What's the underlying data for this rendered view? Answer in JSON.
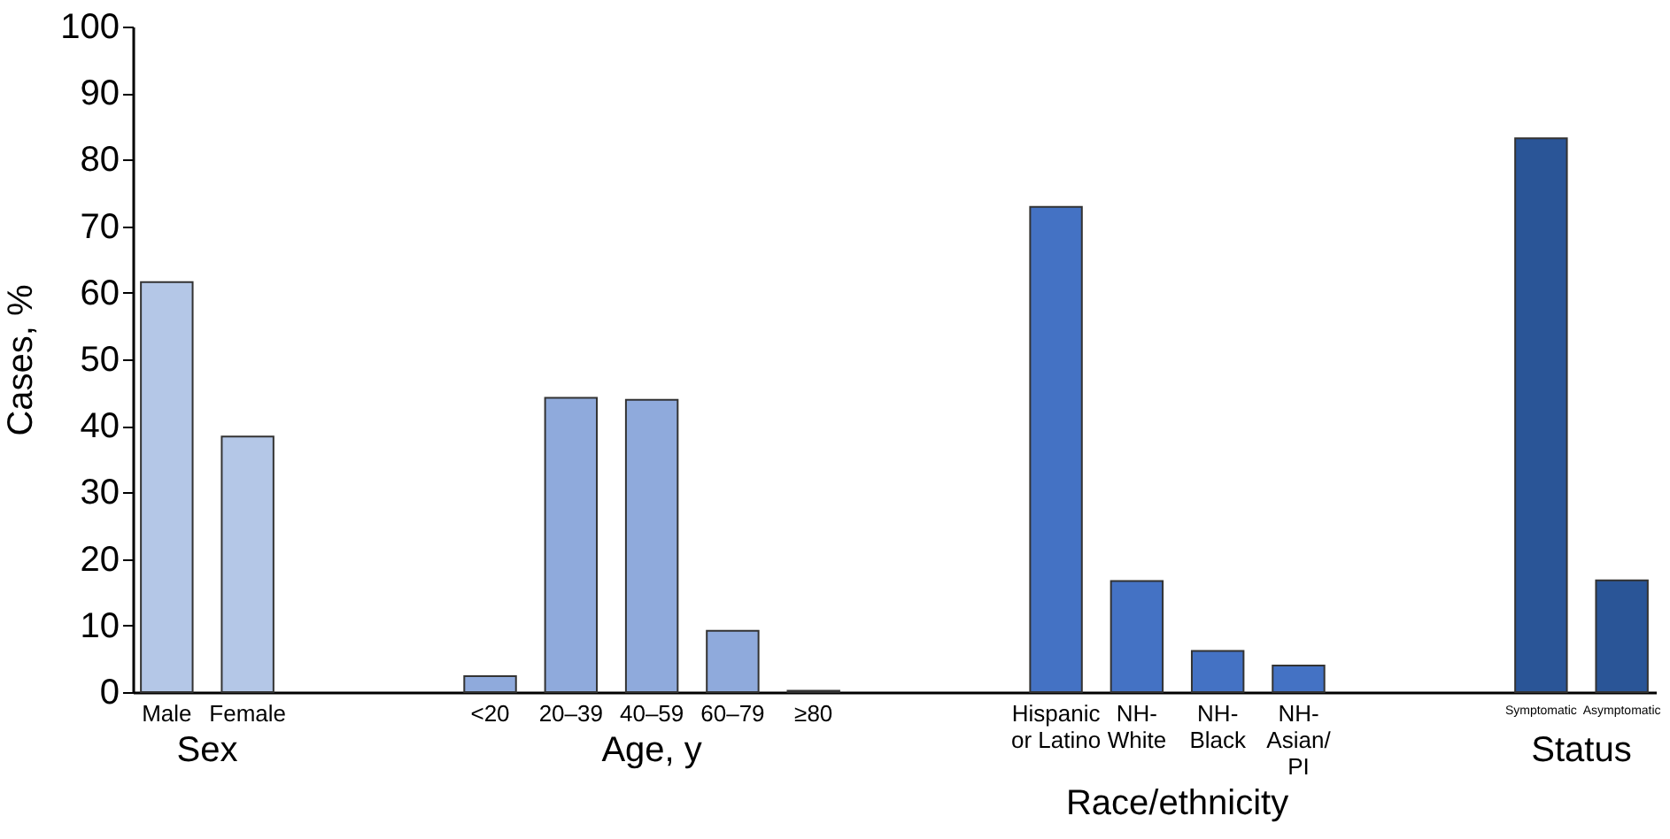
{
  "chart_data": {
    "type": "bar",
    "ylabel": "Cases, %",
    "categories": [
      "Male",
      "Female",
      null,
      null,
      "<20",
      "20–39",
      "40–59",
      "60–79",
      "≥80",
      null,
      null,
      "Hispanic or Latino",
      "NH-White",
      "NH-Black",
      "NH-Asian/PI",
      null,
      null,
      "Symptomatic",
      "Asymptomatic"
    ],
    "values": [
      61.6,
      38.4,
      null,
      null,
      2.4,
      44.2,
      43.9,
      9.2,
      0.2,
      null,
      null,
      72.9,
      16.7,
      6.2,
      4.0,
      null,
      null,
      83.2,
      16.8
    ],
    "colors": [
      "#b4c7e7",
      "#b4c7e7",
      null,
      null,
      "#8faadc",
      "#8faadc",
      "#8faadc",
      "#8faadc",
      "#8faadc",
      null,
      null,
      "#4472c4",
      "#4472c4",
      "#4472c4",
      "#4472c4",
      null,
      null,
      "#2a5597",
      "#2a5597"
    ],
    "ylim": [
      0,
      100
    ],
    "yticks": [
      0,
      10,
      20,
      30,
      40,
      50,
      60,
      70,
      80,
      90,
      100
    ],
    "annotations": [
      "Sex",
      "Age, y",
      "Race/ethnicity",
      "Status"
    ]
  }
}
